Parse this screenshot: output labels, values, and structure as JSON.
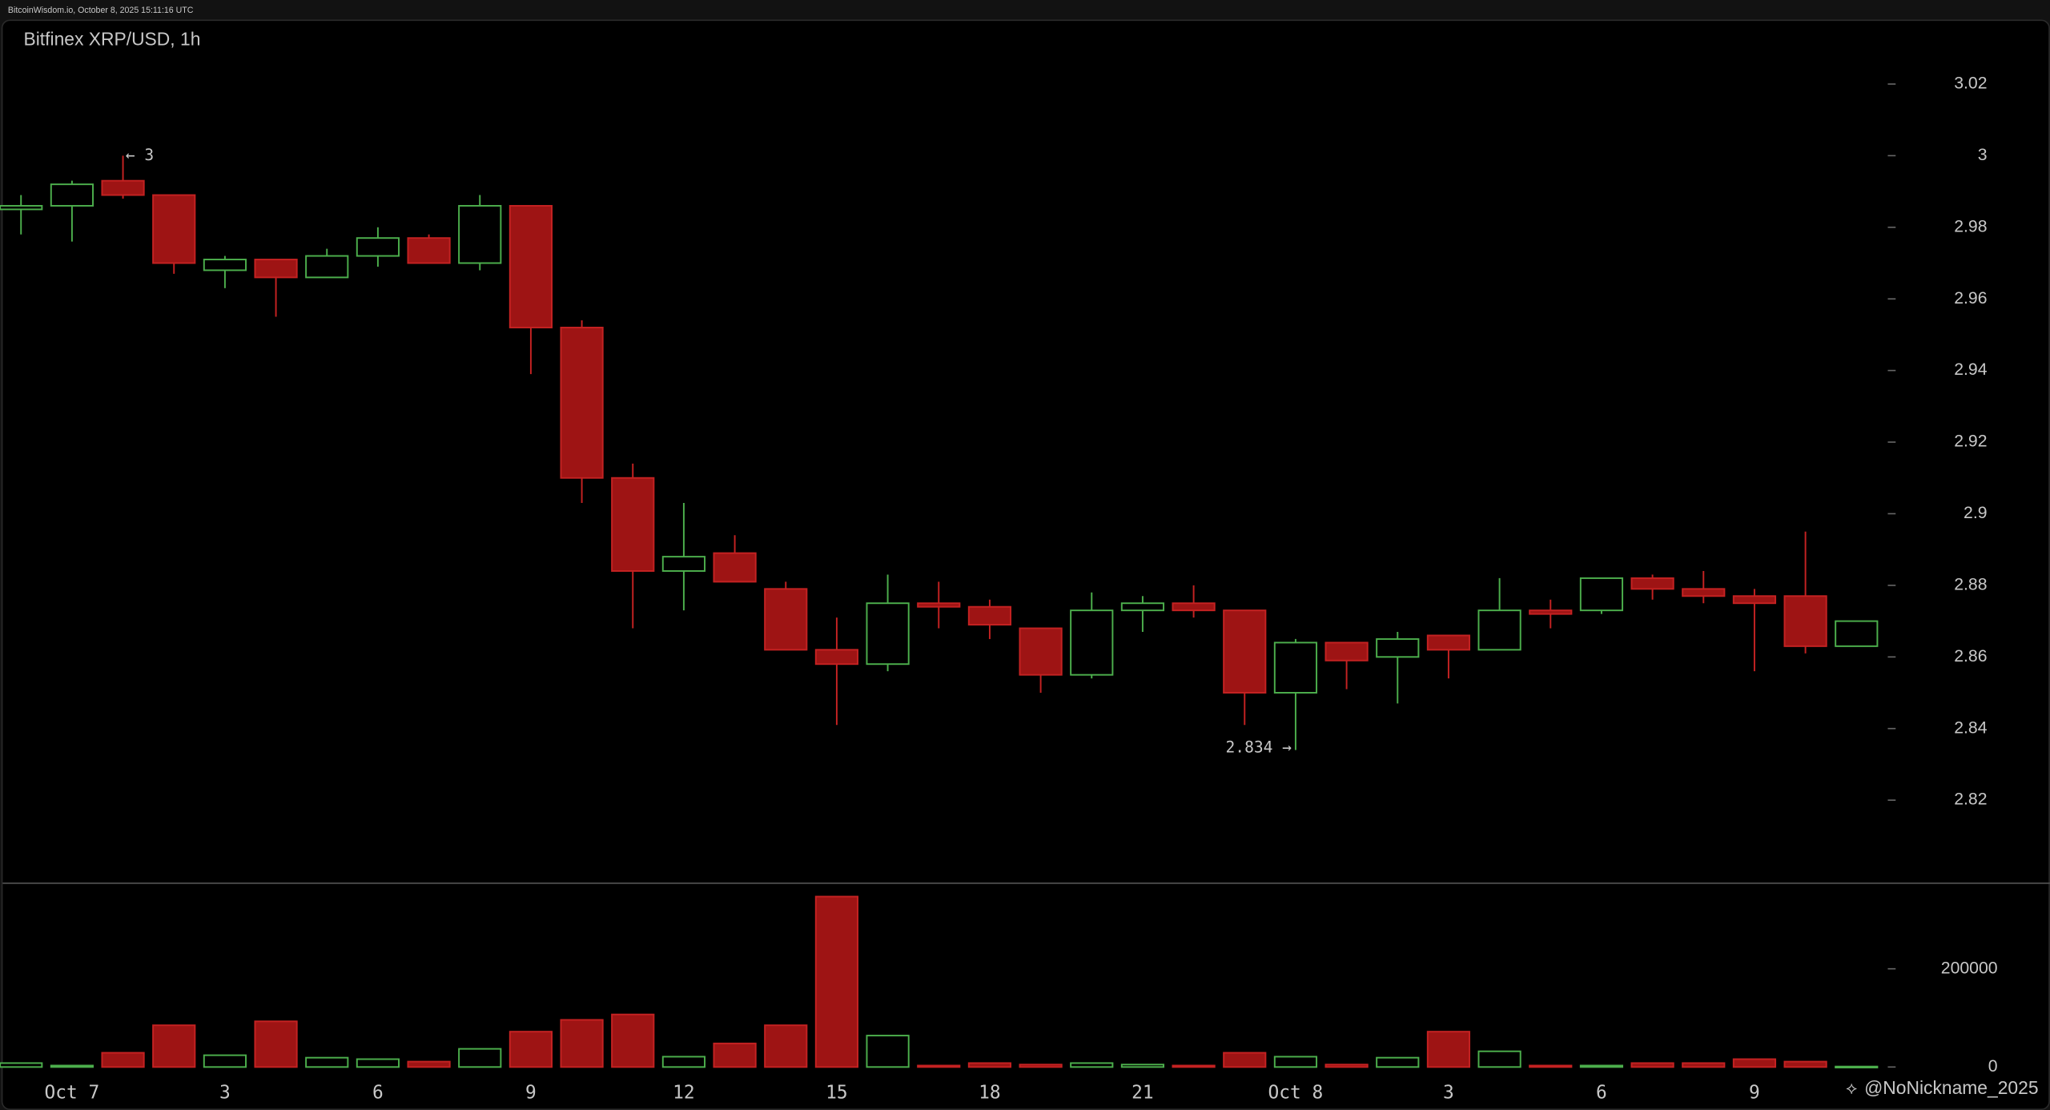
{
  "header": "BitcoinWisdom.io, October 8, 2025 15:11:16 UTC",
  "watermark": "@NoNickname_2025",
  "chart_data": {
    "type": "candlestick",
    "title": "Bitfinex XRP/USD, 1h",
    "annotations": [
      "← 3",
      "2.834 →"
    ],
    "categories": [
      null,
      "Oct 7",
      null,
      null,
      "3",
      null,
      null,
      "6",
      null,
      null,
      "9",
      null,
      null,
      "12",
      null,
      null,
      "15",
      null,
      null,
      "18",
      null,
      null,
      "21",
      null,
      null,
      "Oct 8",
      null,
      null,
      "3",
      null,
      null,
      "6",
      null,
      null,
      "9",
      null,
      null
    ],
    "open": [
      2.985,
      2.986,
      2.993,
      2.989,
      2.968,
      2.971,
      2.966,
      2.972,
      2.977,
      2.97,
      2.986,
      2.952,
      2.91,
      2.884,
      2.889,
      2.879,
      2.862,
      2.858,
      2.875,
      2.874,
      2.868,
      2.855,
      2.873,
      2.875,
      2.873,
      2.85,
      2.864,
      2.86,
      2.866,
      2.862,
      2.873,
      2.873,
      2.882,
      2.879,
      2.877,
      2.877,
      2.863
    ],
    "high": [
      2.989,
      2.993,
      3.0,
      2.989,
      2.972,
      2.971,
      2.974,
      2.98,
      2.978,
      2.989,
      2.986,
      2.954,
      2.914,
      2.903,
      2.894,
      2.881,
      2.871,
      2.883,
      2.881,
      2.876,
      2.868,
      2.878,
      2.877,
      2.88,
      2.873,
      2.865,
      2.864,
      2.867,
      2.866,
      2.882,
      2.876,
      2.882,
      2.883,
      2.884,
      2.879,
      2.895,
      2.87
    ],
    "low": [
      2.978,
      2.976,
      2.988,
      2.967,
      2.963,
      2.955,
      2.966,
      2.969,
      2.97,
      2.968,
      2.939,
      2.903,
      2.868,
      2.873,
      2.881,
      2.862,
      2.841,
      2.856,
      2.868,
      2.865,
      2.85,
      2.854,
      2.867,
      2.871,
      2.841,
      2.834,
      2.851,
      2.847,
      2.854,
      2.862,
      2.868,
      2.872,
      2.876,
      2.875,
      2.856,
      2.861,
      2.863
    ],
    "close": [
      2.986,
      2.992,
      2.989,
      2.97,
      2.971,
      2.966,
      2.972,
      2.977,
      2.97,
      2.986,
      2.952,
      2.91,
      2.884,
      2.888,
      2.881,
      2.862,
      2.858,
      2.875,
      2.874,
      2.869,
      2.855,
      2.873,
      2.875,
      2.873,
      2.85,
      2.864,
      2.859,
      2.865,
      2.862,
      2.873,
      2.872,
      2.882,
      2.879,
      2.877,
      2.875,
      2.863,
      2.87
    ],
    "volume": [
      8000,
      3000,
      29000,
      85000,
      24000,
      93000,
      19000,
      16000,
      11000,
      37000,
      72000,
      96000,
      107000,
      21000,
      48000,
      85000,
      347000,
      64000,
      3000,
      8000,
      5000,
      8000,
      5000,
      3000,
      29000,
      21000,
      5000,
      19000,
      72000,
      32000,
      3000,
      3000,
      8000,
      8000,
      16000,
      11000,
      1000
    ],
    "up_color": "#4cae4c",
    "down_color": "#9e1414",
    "ylim": [
      2.797,
      3.038
    ],
    "yticks": [
      2.82,
      2.84,
      2.86,
      2.88,
      2.9,
      2.92,
      2.94,
      2.96,
      2.98,
      3,
      3.02
    ],
    "volume_ylim": [
      -5000,
      373000
    ],
    "volume_yticks": [
      0,
      200000
    ]
  }
}
